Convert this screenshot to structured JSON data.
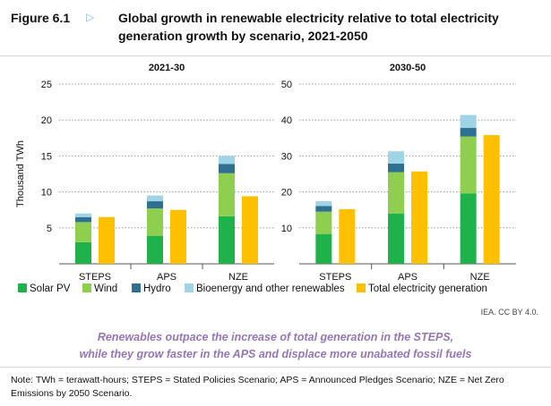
{
  "figure": {
    "label": "Figure 6.1",
    "arrow": "▷",
    "title": "Global growth in renewable electricity relative to total electricity generation growth by scenario, 2021-2050"
  },
  "colors": {
    "Solar PV": "#20b24a",
    "Wind": "#8fcf4f",
    "Hydro": "#2f7090",
    "Bioenergy and other renewables": "#9ed4e6",
    "Total electricity generation": "#ffc000"
  },
  "chart_data": [
    {
      "type": "bar",
      "stacked": true,
      "title": "2021-30",
      "ylabel": "Thousand TWh",
      "ylim": [
        0,
        25
      ],
      "yticks": [
        5,
        10,
        15,
        20,
        25
      ],
      "grid": true,
      "categories": [
        "STEPS",
        "APS",
        "NZE"
      ],
      "series": [
        {
          "name": "Solar PV",
          "stack": "renewables",
          "values": [
            3.0,
            3.9,
            6.6
          ]
        },
        {
          "name": "Wind",
          "stack": "renewables",
          "values": [
            2.8,
            3.8,
            6.0
          ]
        },
        {
          "name": "Hydro",
          "stack": "renewables",
          "values": [
            0.7,
            1.0,
            1.3
          ]
        },
        {
          "name": "Bioenergy and other renewables",
          "stack": "renewables",
          "values": [
            0.5,
            0.8,
            1.1
          ]
        },
        {
          "name": "Total electricity generation",
          "stack": "total",
          "values": [
            6.5,
            7.5,
            9.4
          ]
        }
      ]
    },
    {
      "type": "bar",
      "stacked": true,
      "title": "2030-50",
      "ylim": [
        0,
        50
      ],
      "yticks": [
        10,
        20,
        30,
        40,
        50
      ],
      "grid": true,
      "categories": [
        "STEPS",
        "APS",
        "NZE"
      ],
      "series": [
        {
          "name": "Solar PV",
          "stack": "renewables",
          "values": [
            8.3,
            14.0,
            19.6
          ]
        },
        {
          "name": "Wind",
          "stack": "renewables",
          "values": [
            6.2,
            11.5,
            15.8
          ]
        },
        {
          "name": "Hydro",
          "stack": "renewables",
          "values": [
            1.6,
            2.4,
            2.4
          ]
        },
        {
          "name": "Bioenergy and other renewables",
          "stack": "renewables",
          "values": [
            1.3,
            3.4,
            3.6
          ]
        },
        {
          "name": "Total electricity generation",
          "stack": "total",
          "values": [
            15.2,
            25.7,
            35.8
          ]
        }
      ]
    }
  ],
  "legend": {
    "position": "bottom",
    "items": [
      "Solar PV",
      "Wind",
      "Hydro",
      "Bioenergy and other renewables",
      "Total electricity generation"
    ]
  },
  "source": "IEA. CC BY 4.0.",
  "caption": {
    "line1": "Renewables outpace the increase of total generation in the STEPS,",
    "line2": "while they grow faster in the APS and displace more unabated fossil fuels"
  },
  "note": "Note: TWh = terawatt-hours; STEPS = Stated Policies Scenario; APS = Announced Pledges Scenario; NZE = Net Zero Emissions by 2050 Scenario."
}
